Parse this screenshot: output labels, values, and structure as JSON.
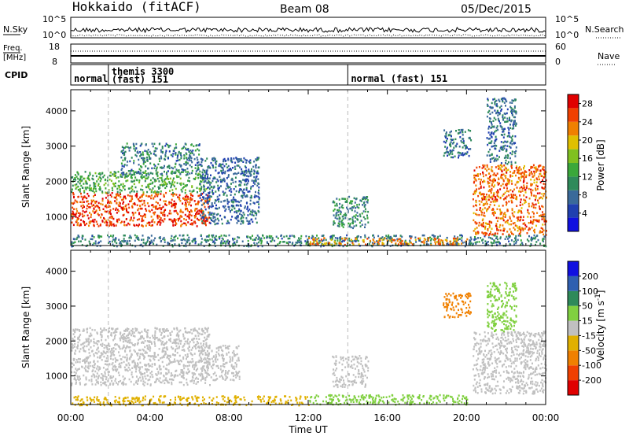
{
  "header": {
    "station": "Hokkaido (fitACF)",
    "beam": "Beam 08",
    "date": "05/Dec/2015"
  },
  "panels": {
    "nsky": {
      "label": "N.Sky",
      "right_label": "N.Search",
      "left_ticks": [
        "10^5",
        "10^0"
      ],
      "right_ticks": [
        "10^5",
        "10^0"
      ]
    },
    "freq": {
      "label_line1": "Freq.",
      "label_line2": "[MHz]",
      "left_ticks": [
        18,
        8
      ],
      "right_label": "Nave",
      "right_ticks": [
        60,
        0
      ]
    },
    "cpid": {
      "label": "CPID",
      "modes": [
        {
          "name": "normal",
          "start_h": 0.0
        },
        {
          "name": "themis 3300",
          "name2": "(fast) 151",
          "start_h": 1.9
        },
        {
          "name": "normal (fast) 151",
          "start_h": 14.0
        }
      ]
    }
  },
  "chart_data": [
    {
      "type": "heatmap",
      "title": "",
      "xlabel": "Time UT",
      "ylabel": "Slant Range [km]",
      "xlim_hours": [
        0,
        24
      ],
      "x_ticks": [
        "00:00",
        "04:00",
        "08:00",
        "12:00",
        "16:00",
        "20:00",
        "00:00"
      ],
      "ylim": [
        180,
        4600
      ],
      "y_ticks": [
        1000,
        2000,
        3000,
        4000
      ],
      "colorbar": {
        "label": "Power [dB]",
        "ticks": [
          4,
          8,
          12,
          16,
          20,
          24,
          28
        ],
        "range": [
          0,
          30
        ],
        "colors": [
          "#1010e0",
          "#2040b0",
          "#3a6a9a",
          "#2e8a5a",
          "#3aa83a",
          "#80c020",
          "#e0c000",
          "#f08000",
          "#f04000",
          "#e00000"
        ]
      },
      "regions": [
        {
          "t0": 0.0,
          "t1": 7.0,
          "r0": 750,
          "r1": 1700,
          "level": 26
        },
        {
          "t0": 0.0,
          "t1": 7.0,
          "r0": 1700,
          "r1": 2300,
          "level": 13
        },
        {
          "t0": 2.5,
          "t1": 6.5,
          "r0": 2200,
          "r1": 3100,
          "level": 9
        },
        {
          "t0": 6.5,
          "t1": 9.5,
          "r0": 800,
          "r1": 2700,
          "level": 7
        },
        {
          "t0": 13.2,
          "t1": 15.0,
          "r0": 700,
          "r1": 1600,
          "level": 10
        },
        {
          "t0": 0.0,
          "t1": 24.0,
          "r0": 180,
          "r1": 500,
          "level": 9
        },
        {
          "t0": 12.0,
          "t1": 20.0,
          "r0": 220,
          "r1": 420,
          "level": 22
        },
        {
          "t0": 18.8,
          "t1": 20.2,
          "r0": 2700,
          "r1": 3500,
          "level": 8
        },
        {
          "t0": 20.3,
          "t1": 24.0,
          "r0": 500,
          "r1": 2500,
          "level": 24
        },
        {
          "t0": 21.0,
          "t1": 22.5,
          "r0": 2500,
          "r1": 4400,
          "level": 8
        }
      ]
    },
    {
      "type": "heatmap",
      "title": "",
      "xlabel": "Time UT",
      "ylabel": "Slant Range [km]",
      "xlim_hours": [
        0,
        24
      ],
      "x_ticks": [
        "00:00",
        "04:00",
        "08:00",
        "12:00",
        "16:00",
        "20:00",
        "00:00"
      ],
      "ylim": [
        180,
        4600
      ],
      "y_ticks": [
        1000,
        2000,
        3000,
        4000
      ],
      "colorbar": {
        "label": "Velocity [m s^-1]",
        "ticks": [
          200,
          100,
          50,
          15,
          -15,
          -50,
          -100,
          -200
        ],
        "colors": [
          "#1010e0",
          "#2f5fb0",
          "#2e8a5a",
          "#80d040",
          "#c0c0c0",
          "#e0b000",
          "#f08000",
          "#f04000",
          "#e00000"
        ]
      },
      "regions": [
        {
          "t0": 0.0,
          "t1": 7.0,
          "r0": 750,
          "r1": 2400,
          "level": 0
        },
        {
          "t0": 6.5,
          "t1": 8.5,
          "r0": 900,
          "r1": 1900,
          "level": 0
        },
        {
          "t0": 13.2,
          "t1": 15.0,
          "r0": 700,
          "r1": 1600,
          "level": 0
        },
        {
          "t0": 0.0,
          "t1": 12.0,
          "r0": 180,
          "r1": 450,
          "level": -30
        },
        {
          "t0": 12.0,
          "t1": 20.0,
          "r0": 200,
          "r1": 480,
          "level": 30
        },
        {
          "t0": 18.8,
          "t1": 20.2,
          "r0": 2700,
          "r1": 3400,
          "level": -80
        },
        {
          "t0": 20.3,
          "t1": 24.0,
          "r0": 500,
          "r1": 2300,
          "level": 0
        },
        {
          "t0": 21.0,
          "t1": 22.5,
          "r0": 2300,
          "r1": 3700,
          "level": 30
        }
      ]
    }
  ]
}
